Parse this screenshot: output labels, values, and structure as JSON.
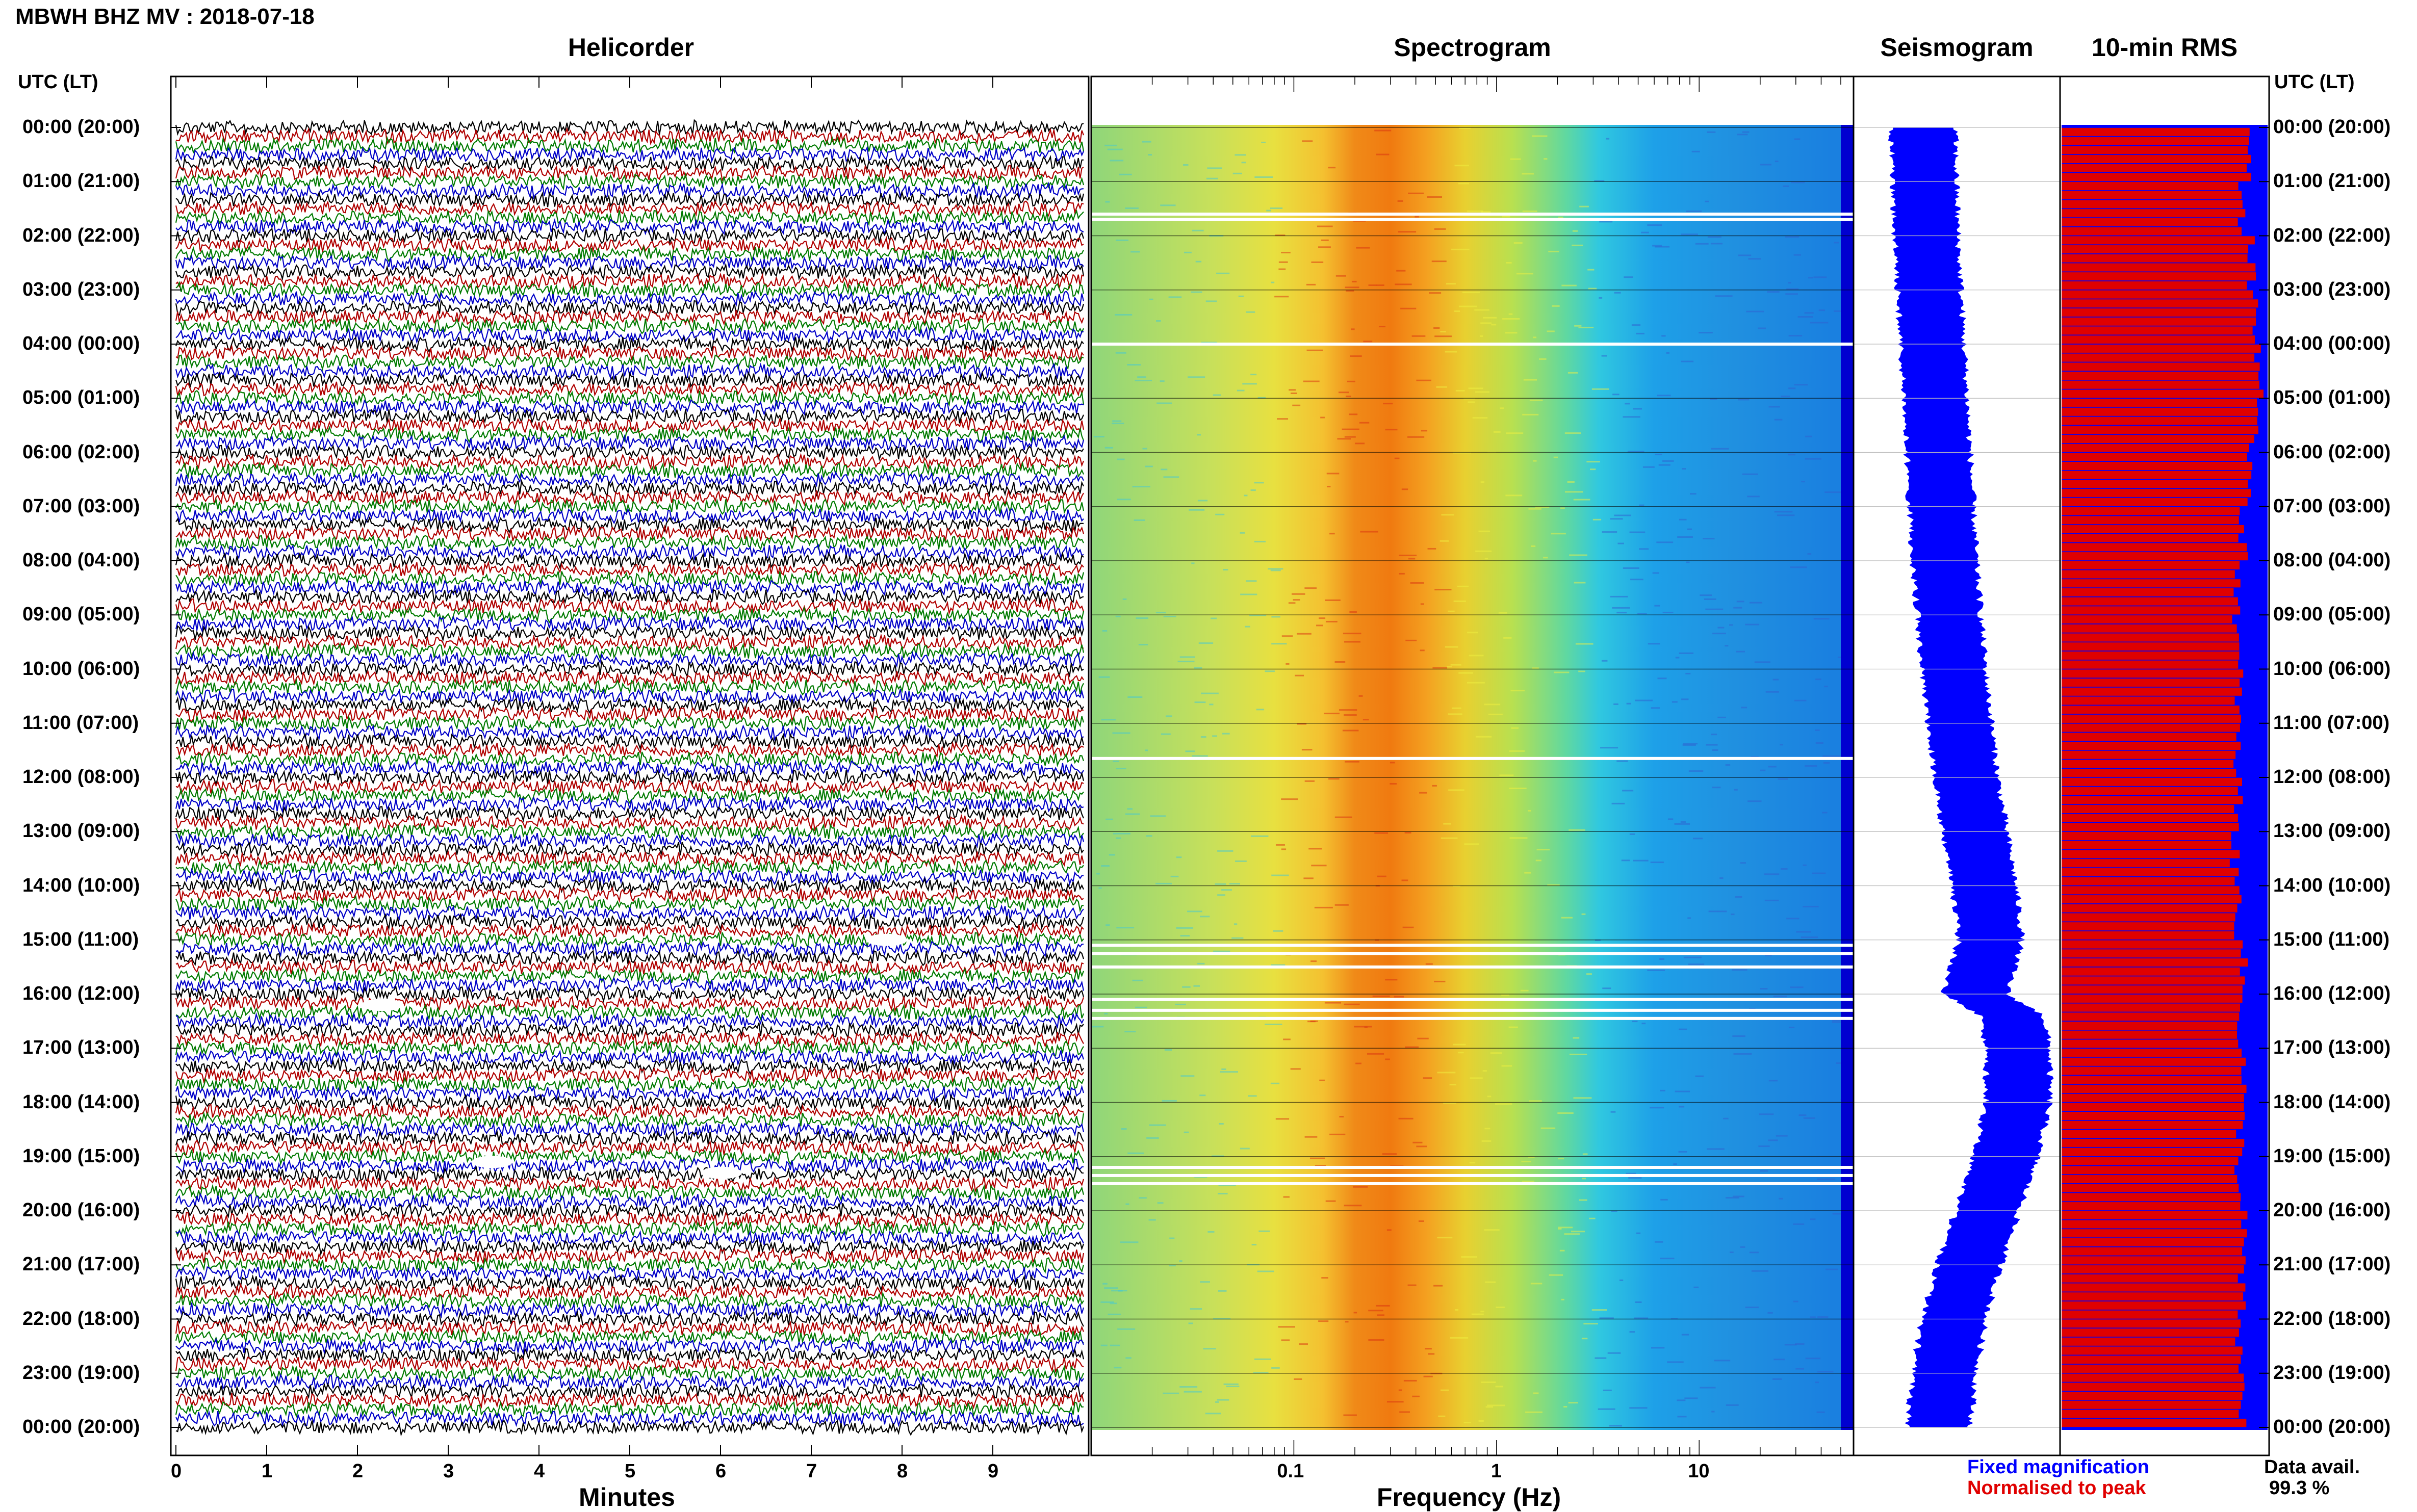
{
  "header": {
    "title": "MBWH BHZ MV : 2018-07-18"
  },
  "panels": {
    "helicorder": "Helicorder",
    "spectrogram": "Spectrogram",
    "seismogram": "Seismogram",
    "rms": "10-min RMS"
  },
  "axis": {
    "time_label_left": "UTC (LT)",
    "time_label_right": "UTC (LT)",
    "minutes_label": "Minutes",
    "frequency_label": "Frequency (Hz)"
  },
  "legend": {
    "fixed": "Fixed magnification",
    "normalised": "Normalised to peak",
    "data_avail_label": "Data avail.",
    "data_avail_value": "99.3 %"
  },
  "colors": {
    "trace_cycle": [
      "#000000",
      "#b00000",
      "#007a00",
      "#0000c8"
    ],
    "seismogram": "#0000ff",
    "rms_fixed": "#0000ff",
    "rms_normalised": "#e00000"
  },
  "chart_data": [
    {
      "type": "line",
      "title": "Helicorder",
      "xlabel": "Minutes",
      "ylabel": "UTC (LT)",
      "x_ticks": [
        "0",
        "1",
        "2",
        "3",
        "4",
        "5",
        "6",
        "7",
        "8",
        "9"
      ],
      "xlim": [
        0,
        10
      ],
      "y_ticks": [
        "00:00 (20:00)",
        "01:00 (21:00)",
        "02:00 (22:00)",
        "03:00 (23:00)",
        "04:00 (00:00)",
        "05:00 (01:00)",
        "06:00 (02:00)",
        "07:00 (03:00)",
        "08:00 (04:00)",
        "09:00 (05:00)",
        "10:00 (06:00)",
        "11:00 (07:00)",
        "12:00 (08:00)",
        "13:00 (09:00)",
        "14:00 (10:00)",
        "15:00 (11:00)",
        "16:00 (12:00)",
        "17:00 (13:00)",
        "18:00 (14:00)",
        "19:00 (15:00)",
        "20:00 (16:00)",
        "21:00 (17:00)",
        "22:00 (18:00)",
        "23:00 (19:00)",
        "00:00 (20:00)"
      ],
      "rows": 144,
      "events": [
        {
          "row_hour": 15.0,
          "minute": 7.8
        },
        {
          "row_hour": 16.2,
          "minute": 2.3
        },
        {
          "row_hour": 19.1,
          "minute": 3.5
        },
        {
          "row_hour": 19.3,
          "minute": 6.0
        }
      ]
    },
    {
      "type": "heatmap",
      "title": "Spectrogram",
      "xlabel": "Frequency (Hz)",
      "x_scale": "log",
      "xlim": [
        0.01,
        50
      ],
      "x_ticks": [
        "0.1",
        "1",
        "10"
      ],
      "dominant_band_hz": [
        0.2,
        0.45
      ],
      "data_gaps_hours": [
        1.6,
        1.7,
        4.0,
        11.65,
        15.1,
        15.25,
        15.5,
        16.1,
        16.3,
        16.45,
        19.2,
        19.35,
        19.5
      ]
    },
    {
      "type": "line",
      "title": "Seismogram",
      "offset_profile": {
        "hours": [
          0,
          2,
          4,
          6,
          8,
          10,
          12,
          13,
          14,
          15,
          16,
          16.4,
          17,
          18,
          19,
          20,
          21,
          22,
          23,
          24
        ],
        "offset": [
          -0.55,
          -0.5,
          -0.4,
          -0.3,
          -0.2,
          -0.05,
          0.15,
          0.3,
          0.45,
          0.55,
          0.3,
          0.9,
          1.0,
          1.0,
          0.8,
          0.5,
          0.2,
          -0.05,
          -0.2,
          -0.3
        ]
      }
    },
    {
      "type": "bar",
      "title": "10-min RMS",
      "series": [
        {
          "name": "Fixed magnification"
        },
        {
          "name": "Normalised to peak"
        }
      ],
      "hourly_level": [
        0.9,
        0.88,
        0.92,
        0.94,
        0.96,
        0.93,
        0.92,
        0.88,
        0.86,
        0.85,
        0.86,
        0.85,
        0.86,
        0.84,
        0.86,
        0.88,
        0.87,
        0.88,
        0.87,
        0.86,
        0.88,
        0.87,
        0.86,
        0.88
      ]
    }
  ]
}
